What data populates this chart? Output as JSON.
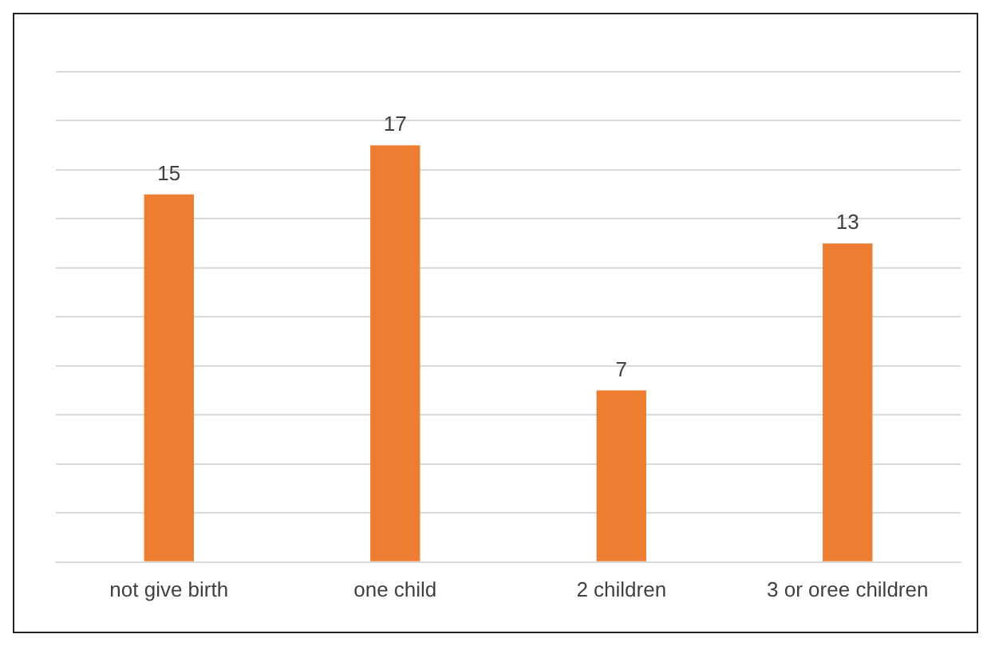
{
  "chart_data": {
    "type": "bar",
    "categories": [
      "not give birth",
      "one child",
      "2 children",
      "3 or oree children"
    ],
    "values": [
      15,
      17,
      7,
      13
    ],
    "color": "#ed7d31",
    "data_labels": true,
    "ylim": [
      0,
      20
    ],
    "yticks": [
      {
        "value": 0,
        "label": null
      },
      {
        "value": 2,
        "label": null
      },
      {
        "value": 4,
        "label": null
      },
      {
        "value": 6,
        "label": null
      },
      {
        "value": 8,
        "label": null
      },
      {
        "value": 10,
        "label": null
      },
      {
        "value": 12,
        "label": null
      },
      {
        "value": 14,
        "label": null
      },
      {
        "value": 16,
        "label": null
      },
      {
        "value": 18,
        "label": null
      },
      {
        "value": 20,
        "label": null
      }
    ],
    "grid": "y",
    "tick_labels": "x",
    "legend": false
  }
}
